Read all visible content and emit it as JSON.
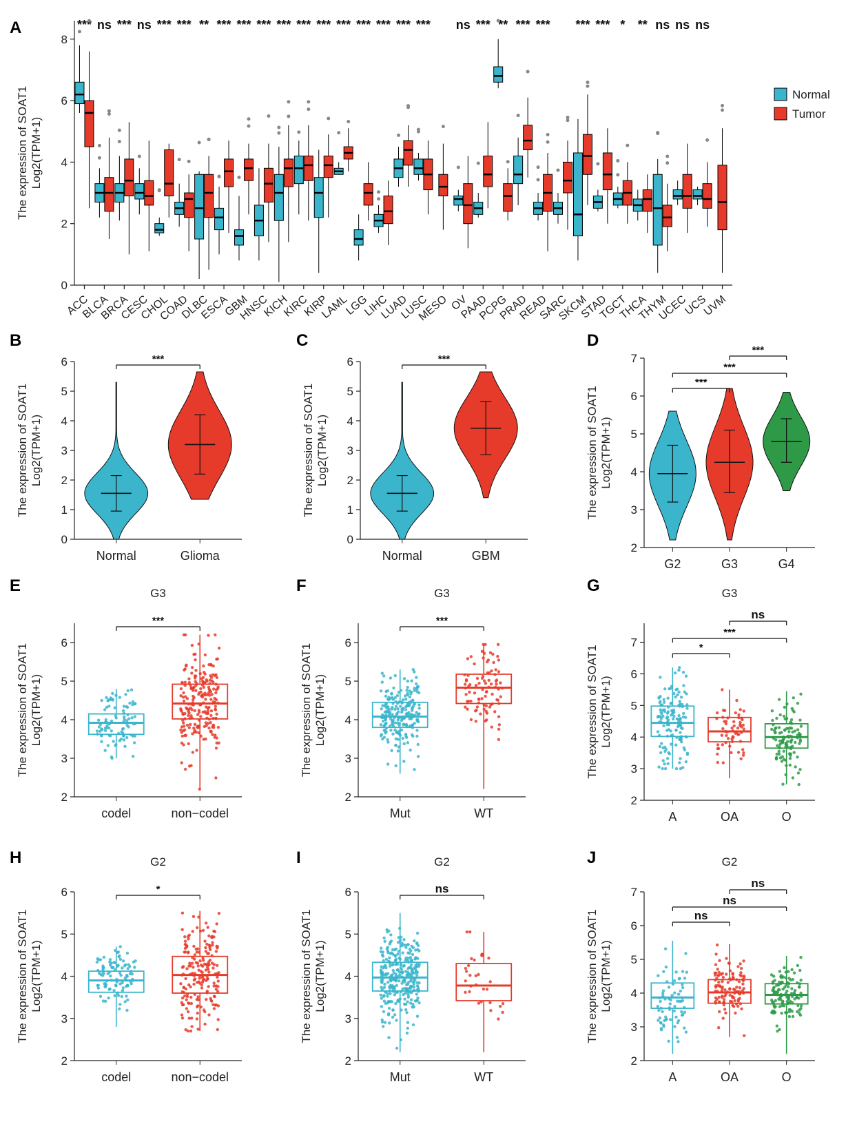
{
  "colors": {
    "normal": "#3AB5CC",
    "tumor": "#E63B2A",
    "grade4": "#2E9A48",
    "axis": "#222222",
    "outlier": "#888888",
    "sig": "#111111"
  },
  "chart_data": [
    {
      "panel": "A",
      "type": "box",
      "ylabel": "The expression of SOAT1",
      "ylabel2": "Log2(TPM+1)",
      "ylim": [
        0,
        8.6
      ],
      "yticks": [
        0,
        2,
        4,
        6,
        8
      ],
      "legend": {
        "position": "right",
        "entries": [
          "Normal",
          "Tumor"
        ]
      },
      "categories": [
        "ACC",
        "BLCA",
        "BRCA",
        "CESC",
        "CHOL",
        "COAD",
        "DLBC",
        "ESCA",
        "GBM",
        "HNSC",
        "KICH",
        "KIRC",
        "KIRP",
        "LAML",
        "LGG",
        "LIHC",
        "LUAD",
        "LUSC",
        "MESO",
        "OV",
        "PAAD",
        "PCPG",
        "PRAD",
        "READ",
        "SARC",
        "SKCM",
        "STAD",
        "TGCT",
        "THCA",
        "THYM",
        "UCEC",
        "UCS",
        "UVM"
      ],
      "significance": [
        "***",
        "ns",
        "***",
        "ns",
        "***",
        "***",
        "**",
        "***",
        "***",
        "***",
        "***",
        "***",
        "***",
        "***",
        "***",
        "***",
        "***",
        "***",
        "",
        "ns",
        "***",
        "**",
        "***",
        "***",
        "",
        "***",
        "***",
        "*",
        "**",
        "ns",
        "ns",
        "ns",
        ""
      ],
      "normal": [
        [
          5.6,
          5.9,
          6.2,
          6.6,
          7.8
        ],
        [
          2.2,
          2.7,
          3.0,
          3.3,
          3.8
        ],
        [
          2.1,
          2.7,
          3.0,
          3.3,
          4.2
        ],
        [
          2.3,
          2.8,
          3.0,
          3.3,
          3.8
        ],
        [
          1.6,
          1.7,
          1.8,
          2.0,
          2.2
        ],
        [
          1.9,
          2.3,
          2.5,
          2.7,
          3.3
        ],
        [
          0.2,
          1.5,
          2.5,
          3.6,
          3.7
        ],
        [
          1.0,
          1.8,
          2.2,
          2.5,
          3.2
        ],
        [
          0.8,
          1.3,
          1.6,
          1.8,
          2.9
        ],
        [
          0.8,
          1.6,
          2.1,
          2.6,
          3.8
        ],
        [
          0.1,
          2.1,
          3.0,
          3.6,
          4.5
        ],
        [
          2.3,
          3.3,
          3.8,
          4.2,
          4.7
        ],
        [
          0.4,
          2.2,
          3.0,
          3.5,
          4.4
        ],
        [
          3.6,
          3.6,
          3.7,
          3.8,
          4.0
        ],
        [
          0.8,
          1.3,
          1.5,
          1.8,
          2.3
        ],
        [
          1.7,
          1.9,
          2.1,
          2.3,
          2.6
        ],
        [
          3.2,
          3.5,
          3.8,
          4.1,
          4.5
        ],
        [
          3.4,
          3.6,
          3.8,
          4.1,
          4.3
        ],
        null,
        [
          2.4,
          2.6,
          2.8,
          2.9,
          3.1
        ],
        [
          2.2,
          2.3,
          2.5,
          2.7,
          3.0
        ],
        [
          6.4,
          6.6,
          6.8,
          7.1,
          8.0
        ],
        [
          2.6,
          3.3,
          3.6,
          4.2,
          4.8
        ],
        [
          2.1,
          2.3,
          2.5,
          2.7,
          3.0
        ],
        [
          2.0,
          2.3,
          2.5,
          2.7,
          3.0
        ],
        [
          0.8,
          1.6,
          2.3,
          4.3,
          5.4
        ],
        [
          2.4,
          2.5,
          2.7,
          2.9,
          3.1
        ],
        [
          2.5,
          2.6,
          2.8,
          3.0,
          3.2
        ],
        [
          2.1,
          2.4,
          2.6,
          2.8,
          3.1
        ],
        [
          0.4,
          1.3,
          2.5,
          3.6,
          4.1
        ],
        [
          2.6,
          2.8,
          2.9,
          3.1,
          3.4
        ],
        [
          2.6,
          2.8,
          2.9,
          3.1,
          3.2
        ],
        null
      ],
      "tumor": [
        [
          2.5,
          4.5,
          5.6,
          6.0,
          7.6
        ],
        [
          1.5,
          2.4,
          3.0,
          3.5,
          4.8
        ],
        [
          1.0,
          2.9,
          3.4,
          4.1,
          5.3
        ],
        [
          1.1,
          2.6,
          2.9,
          3.4,
          4.7
        ],
        [
          2.2,
          2.9,
          3.3,
          4.4,
          4.6
        ],
        [
          1.1,
          2.2,
          2.8,
          3.0,
          3.6
        ],
        [
          0.5,
          2.2,
          3.0,
          3.6,
          4.2
        ],
        [
          1.7,
          3.2,
          3.7,
          4.1,
          4.7
        ],
        [
          2.3,
          3.4,
          3.8,
          4.1,
          4.6
        ],
        [
          1.4,
          2.7,
          3.3,
          3.8,
          4.6
        ],
        [
          1.4,
          3.2,
          3.8,
          4.1,
          5.2
        ],
        [
          2.1,
          3.4,
          3.9,
          4.2,
          5.2
        ],
        [
          2.2,
          3.5,
          3.9,
          4.2,
          4.9
        ],
        [
          3.7,
          4.1,
          4.3,
          4.5,
          5.1
        ],
        [
          2.1,
          2.6,
          3.0,
          3.3,
          4.0
        ],
        [
          1.3,
          2.0,
          2.4,
          2.9,
          3.4
        ],
        [
          3.2,
          3.9,
          4.4,
          4.7,
          5.2
        ],
        [
          2.3,
          3.1,
          3.6,
          4.1,
          4.7
        ],
        [
          1.8,
          2.9,
          3.2,
          3.6,
          4.6
        ],
        [
          1.2,
          2.0,
          2.6,
          3.3,
          4.2
        ],
        [
          2.5,
          3.2,
          3.6,
          4.2,
          5.3
        ],
        [
          2.1,
          2.4,
          2.9,
          3.3,
          3.8
        ],
        [
          3.5,
          4.4,
          4.7,
          5.2,
          6.1
        ],
        [
          1.1,
          2.4,
          3.0,
          3.6,
          4.3
        ],
        [
          1.8,
          3.0,
          3.4,
          4.0,
          4.7
        ],
        [
          2.6,
          3.6,
          4.2,
          4.9,
          6.2
        ],
        [
          2.0,
          3.1,
          3.6,
          4.3,
          5.1
        ],
        [
          2.0,
          2.6,
          3.0,
          3.4,
          4.0
        ],
        [
          1.7,
          2.4,
          2.8,
          3.1,
          3.6
        ],
        [
          1.1,
          1.9,
          2.2,
          2.6,
          3.3
        ],
        [
          1.7,
          2.5,
          2.9,
          3.6,
          4.6
        ],
        [
          1.9,
          2.5,
          2.8,
          3.3,
          4.0
        ],
        [
          0.4,
          1.8,
          2.7,
          3.9,
          5.1
        ]
      ],
      "xticks_labels": [
        "ACC",
        "BLCA",
        "BRCA",
        "CESC",
        "CHOL",
        "COAD",
        "DLBC",
        "ESCA",
        "GBM",
        "HNSC",
        "KICH",
        "KIRC",
        "KIRP",
        "LAML",
        "LGG",
        "LIHC",
        "LUAD",
        "LUSC",
        "MESO",
        "OV",
        "PAAD",
        "PCPG",
        "PRAD",
        "READ",
        "SARC",
        "SKCM",
        "STAD",
        "TGCT",
        "THCA",
        "THYM",
        "UCEC",
        "UCS",
        "UVM"
      ]
    },
    {
      "panel": "B",
      "type": "violin",
      "title": "",
      "ylabel": "The expression of SOAT1",
      "ylabel2": "Log2(TPM+1)",
      "ylim": [
        0,
        6
      ],
      "yticks": [
        0,
        1,
        2,
        3,
        4,
        5,
        6
      ],
      "categories": [
        "Normal",
        "Glioma"
      ],
      "values": [
        {
          "min": 0.0,
          "max": 5.3,
          "mean": 1.55,
          "lo": 0.95,
          "hi": 2.15
        },
        {
          "min": 1.35,
          "max": 5.65,
          "mean": 3.2,
          "lo": 2.2,
          "hi": 4.2
        }
      ],
      "comparisons": [
        {
          "a": 0,
          "b": 1,
          "label": "***"
        }
      ]
    },
    {
      "panel": "C",
      "type": "violin",
      "title": "",
      "ylabel": "The expression of SOAT1",
      "ylabel2": "Log2(TPM+1)",
      "ylim": [
        0,
        6
      ],
      "yticks": [
        0,
        1,
        2,
        3,
        4,
        5,
        6
      ],
      "categories": [
        "Normal",
        "GBM"
      ],
      "values": [
        {
          "min": 0.0,
          "max": 5.3,
          "mean": 1.55,
          "lo": 0.95,
          "hi": 2.15
        },
        {
          "min": 1.4,
          "max": 5.65,
          "mean": 3.75,
          "lo": 2.85,
          "hi": 4.65
        }
      ],
      "comparisons": [
        {
          "a": 0,
          "b": 1,
          "label": "***"
        }
      ]
    },
    {
      "panel": "D",
      "type": "violin",
      "title": "",
      "ylabel": "The expression of SOAT1",
      "ylabel2": "Log2(TPM+1)",
      "ylim": [
        2,
        7
      ],
      "yticks": [
        2,
        3,
        4,
        5,
        6,
        7
      ],
      "categories": [
        "G2",
        "G3",
        "G4"
      ],
      "values": [
        {
          "min": 2.2,
          "max": 5.6,
          "mean": 3.95,
          "lo": 3.2,
          "hi": 4.7
        },
        {
          "min": 2.2,
          "max": 6.2,
          "mean": 4.25,
          "lo": 3.45,
          "hi": 5.1
        },
        {
          "min": 3.5,
          "max": 6.1,
          "mean": 4.8,
          "lo": 4.25,
          "hi": 5.4
        }
      ],
      "comparisons": [
        {
          "a": 0,
          "b": 1,
          "label": "***"
        },
        {
          "a": 0,
          "b": 2,
          "label": "***"
        },
        {
          "a": 1,
          "b": 2,
          "label": "***"
        }
      ]
    },
    {
      "panel": "E",
      "type": "box",
      "title": "G3",
      "ylabel": "The expression of SOAT1",
      "ylabel2": "Log2(TPM+1)",
      "ylim": [
        2,
        6.5
      ],
      "yticks": [
        2,
        3,
        4,
        5,
        6
      ],
      "categories": [
        "codel",
        "non−codel"
      ],
      "values": [
        {
          "min": 3.0,
          "q1": 3.62,
          "median": 3.92,
          "q3": 4.15,
          "max": 4.8,
          "n": 90
        },
        {
          "min": 2.2,
          "q1": 4.02,
          "median": 4.42,
          "q3": 4.92,
          "max": 6.2,
          "n": 220
        }
      ],
      "comparisons": [
        {
          "a": 0,
          "b": 1,
          "label": "***"
        }
      ]
    },
    {
      "panel": "F",
      "type": "box",
      "title": "G3",
      "ylabel": "The expression of SOAT1",
      "ylabel2": "Log2(TPM+1)",
      "ylim": [
        2,
        6.5
      ],
      "yticks": [
        2,
        3,
        4,
        5,
        6
      ],
      "categories": [
        "Mut",
        "WT"
      ],
      "values": [
        {
          "min": 2.6,
          "q1": 3.8,
          "median": 4.08,
          "q3": 4.45,
          "max": 5.3,
          "n": 220
        },
        {
          "min": 2.2,
          "q1": 4.42,
          "median": 4.83,
          "q3": 5.18,
          "max": 5.95,
          "n": 90
        }
      ],
      "comparisons": [
        {
          "a": 0,
          "b": 1,
          "label": "***"
        }
      ]
    },
    {
      "panel": "G",
      "type": "box",
      "title": "G3",
      "ylabel": "The expression of SOAT1",
      "ylabel2": "Log2(TPM+1)",
      "ylim": [
        2,
        7.6
      ],
      "yticks": [
        2,
        3,
        4,
        5,
        6,
        7
      ],
      "categories": [
        "A",
        "OA",
        "O"
      ],
      "values": [
        {
          "min": 3.0,
          "q1": 4.02,
          "median": 4.45,
          "q3": 4.98,
          "max": 6.2,
          "n": 140
        },
        {
          "min": 2.7,
          "q1": 3.85,
          "median": 4.18,
          "q3": 4.62,
          "max": 5.5,
          "n": 60
        },
        {
          "min": 2.5,
          "q1": 3.65,
          "median": 4.0,
          "q3": 4.42,
          "max": 5.45,
          "n": 110
        }
      ],
      "comparisons": [
        {
          "a": 0,
          "b": 1,
          "label": "*"
        },
        {
          "a": 0,
          "b": 2,
          "label": "***"
        },
        {
          "a": 1,
          "b": 2,
          "label": "ns"
        }
      ]
    },
    {
      "panel": "H",
      "type": "box",
      "title": "G2",
      "ylabel": "The expression of SOAT1",
      "ylabel2": "Log2(TPM+1)",
      "ylim": [
        2,
        6
      ],
      "yticks": [
        2,
        3,
        4,
        5,
        6
      ],
      "categories": [
        "codel",
        "non−codel"
      ],
      "values": [
        {
          "min": 2.8,
          "q1": 3.62,
          "median": 3.9,
          "q3": 4.12,
          "max": 4.7,
          "n": 100
        },
        {
          "min": 2.7,
          "q1": 3.6,
          "median": 4.03,
          "q3": 4.47,
          "max": 5.55,
          "n": 190
        }
      ],
      "comparisons": [
        {
          "a": 0,
          "b": 1,
          "label": "*"
        }
      ]
    },
    {
      "panel": "I",
      "type": "box",
      "title": "G2",
      "ylabel": "The expression of SOAT1",
      "ylabel2": "Log2(TPM+1)",
      "ylim": [
        2,
        6
      ],
      "yticks": [
        2,
        3,
        4,
        5,
        6
      ],
      "categories": [
        "Mut",
        "WT"
      ],
      "values": [
        {
          "min": 2.2,
          "q1": 3.65,
          "median": 3.97,
          "q3": 4.33,
          "max": 5.5,
          "n": 300
        },
        {
          "min": 2.2,
          "q1": 3.42,
          "median": 3.78,
          "q3": 4.3,
          "max": 5.05,
          "n": 30
        }
      ],
      "comparisons": [
        {
          "a": 0,
          "b": 1,
          "label": "ns"
        }
      ]
    },
    {
      "panel": "J",
      "type": "box",
      "title": "G2",
      "ylabel": "The expression of SOAT1",
      "ylabel2": "Log2(TPM+1)",
      "ylim": [
        2,
        7
      ],
      "yticks": [
        2,
        3,
        4,
        5,
        6,
        7
      ],
      "categories": [
        "A",
        "OA",
        "O"
      ],
      "values": [
        {
          "min": 2.2,
          "q1": 3.55,
          "median": 3.87,
          "q3": 4.3,
          "max": 5.55,
          "n": 70
        },
        {
          "min": 2.7,
          "q1": 3.7,
          "median": 4.02,
          "q3": 4.4,
          "max": 5.45,
          "n": 110
        },
        {
          "min": 2.2,
          "q1": 3.68,
          "median": 3.95,
          "q3": 4.28,
          "max": 5.1,
          "n": 120
        }
      ],
      "comparisons": [
        {
          "a": 0,
          "b": 1,
          "label": "ns"
        },
        {
          "a": 0,
          "b": 2,
          "label": "ns"
        },
        {
          "a": 1,
          "b": 2,
          "label": "ns"
        }
      ]
    }
  ]
}
